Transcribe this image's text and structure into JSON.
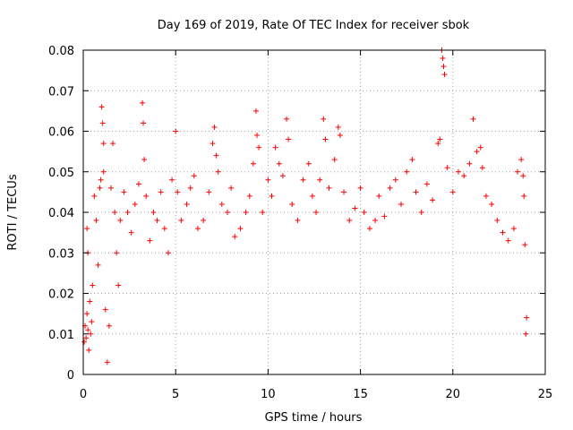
{
  "chart_data": {
    "type": "scatter",
    "title": "Day 169 of 2019, Rate Of TEC Index for receiver sbok",
    "xlabel": "GPS time / hours",
    "ylabel": "ROTI / TECUs",
    "xlim": [
      0,
      25
    ],
    "ylim": [
      0,
      0.08
    ],
    "x_ticks": [
      "0",
      "5",
      "10",
      "15",
      "20",
      "25"
    ],
    "y_ticks": [
      "0",
      "0.01",
      "0.02",
      "0.03",
      "0.04",
      "0.05",
      "0.06",
      "0.07",
      "0.08"
    ],
    "grid": true,
    "legend": "none",
    "marker": "plus",
    "color": "#ff0000",
    "series": [
      {
        "points": [
          [
            0.05,
            0.008
          ],
          [
            0.1,
            0.012
          ],
          [
            0.15,
            0.009
          ],
          [
            0.2,
            0.015
          ],
          [
            0.25,
            0.011
          ],
          [
            0.3,
            0.006
          ],
          [
            0.35,
            0.018
          ],
          [
            0.4,
            0.01
          ],
          [
            0.45,
            0.013
          ],
          [
            0.5,
            0.022
          ],
          [
            0.2,
            0.036
          ],
          [
            0.25,
            0.03
          ],
          [
            0.6,
            0.044
          ],
          [
            0.7,
            0.038
          ],
          [
            0.8,
            0.027
          ],
          [
            0.9,
            0.046
          ],
          [
            0.95,
            0.048
          ],
          [
            1.0,
            0.066
          ],
          [
            1.05,
            0.062
          ],
          [
            1.1,
            0.057
          ],
          [
            1.1,
            0.05
          ],
          [
            1.2,
            0.016
          ],
          [
            1.3,
            0.003
          ],
          [
            1.4,
            0.012
          ],
          [
            1.5,
            0.046
          ],
          [
            1.6,
            0.057
          ],
          [
            1.7,
            0.04
          ],
          [
            1.8,
            0.03
          ],
          [
            1.9,
            0.022
          ],
          [
            2.0,
            0.038
          ],
          [
            2.2,
            0.045
          ],
          [
            2.4,
            0.04
          ],
          [
            2.6,
            0.035
          ],
          [
            2.8,
            0.042
          ],
          [
            3.0,
            0.047
          ],
          [
            3.2,
            0.067
          ],
          [
            3.25,
            0.062
          ],
          [
            3.3,
            0.053
          ],
          [
            3.4,
            0.044
          ],
          [
            3.6,
            0.033
          ],
          [
            3.8,
            0.04
          ],
          [
            4.0,
            0.038
          ],
          [
            4.2,
            0.045
          ],
          [
            4.4,
            0.036
          ],
          [
            4.6,
            0.03
          ],
          [
            4.8,
            0.048
          ],
          [
            5.0,
            0.06
          ],
          [
            5.1,
            0.045
          ],
          [
            5.3,
            0.038
          ],
          [
            5.6,
            0.042
          ],
          [
            5.8,
            0.046
          ],
          [
            6.0,
            0.049
          ],
          [
            6.2,
            0.036
          ],
          [
            6.5,
            0.038
          ],
          [
            6.8,
            0.045
          ],
          [
            7.0,
            0.057
          ],
          [
            7.1,
            0.061
          ],
          [
            7.2,
            0.054
          ],
          [
            7.3,
            0.05
          ],
          [
            7.5,
            0.042
          ],
          [
            7.8,
            0.04
          ],
          [
            8.0,
            0.046
          ],
          [
            8.2,
            0.034
          ],
          [
            8.5,
            0.036
          ],
          [
            8.8,
            0.04
          ],
          [
            9.0,
            0.044
          ],
          [
            9.2,
            0.052
          ],
          [
            9.35,
            0.065
          ],
          [
            9.4,
            0.059
          ],
          [
            9.5,
            0.056
          ],
          [
            9.7,
            0.04
          ],
          [
            10.0,
            0.048
          ],
          [
            10.2,
            0.044
          ],
          [
            10.4,
            0.056
          ],
          [
            10.6,
            0.052
          ],
          [
            10.8,
            0.049
          ],
          [
            11.0,
            0.063
          ],
          [
            11.1,
            0.058
          ],
          [
            11.3,
            0.042
          ],
          [
            11.6,
            0.038
          ],
          [
            11.9,
            0.048
          ],
          [
            12.2,
            0.052
          ],
          [
            12.4,
            0.044
          ],
          [
            12.6,
            0.04
          ],
          [
            12.8,
            0.048
          ],
          [
            13.0,
            0.063
          ],
          [
            13.1,
            0.058
          ],
          [
            13.3,
            0.046
          ],
          [
            13.6,
            0.053
          ],
          [
            13.8,
            0.061
          ],
          [
            13.9,
            0.059
          ],
          [
            14.1,
            0.045
          ],
          [
            14.4,
            0.038
          ],
          [
            14.7,
            0.041
          ],
          [
            15.0,
            0.046
          ],
          [
            15.2,
            0.04
          ],
          [
            15.5,
            0.036
          ],
          [
            15.8,
            0.038
          ],
          [
            16.0,
            0.044
          ],
          [
            16.3,
            0.039
          ],
          [
            16.6,
            0.046
          ],
          [
            16.9,
            0.048
          ],
          [
            17.2,
            0.042
          ],
          [
            17.5,
            0.05
          ],
          [
            17.8,
            0.053
          ],
          [
            18.0,
            0.045
          ],
          [
            18.3,
            0.04
          ],
          [
            18.6,
            0.047
          ],
          [
            18.9,
            0.043
          ],
          [
            19.2,
            0.057
          ],
          [
            19.3,
            0.058
          ],
          [
            19.4,
            0.08
          ],
          [
            19.45,
            0.078
          ],
          [
            19.5,
            0.076
          ],
          [
            19.55,
            0.074
          ],
          [
            19.7,
            0.051
          ],
          [
            20.0,
            0.045
          ],
          [
            20.3,
            0.05
          ],
          [
            20.6,
            0.049
          ],
          [
            20.9,
            0.052
          ],
          [
            21.1,
            0.063
          ],
          [
            21.3,
            0.055
          ],
          [
            21.5,
            0.056
          ],
          [
            21.6,
            0.051
          ],
          [
            21.8,
            0.044
          ],
          [
            22.1,
            0.042
          ],
          [
            22.4,
            0.038
          ],
          [
            22.7,
            0.035
          ],
          [
            23.0,
            0.033
          ],
          [
            23.3,
            0.036
          ],
          [
            23.5,
            0.05
          ],
          [
            23.7,
            0.053
          ],
          [
            23.8,
            0.049
          ],
          [
            23.85,
            0.044
          ],
          [
            23.9,
            0.032
          ],
          [
            23.95,
            0.01
          ],
          [
            23.99,
            0.014
          ]
        ]
      }
    ]
  }
}
